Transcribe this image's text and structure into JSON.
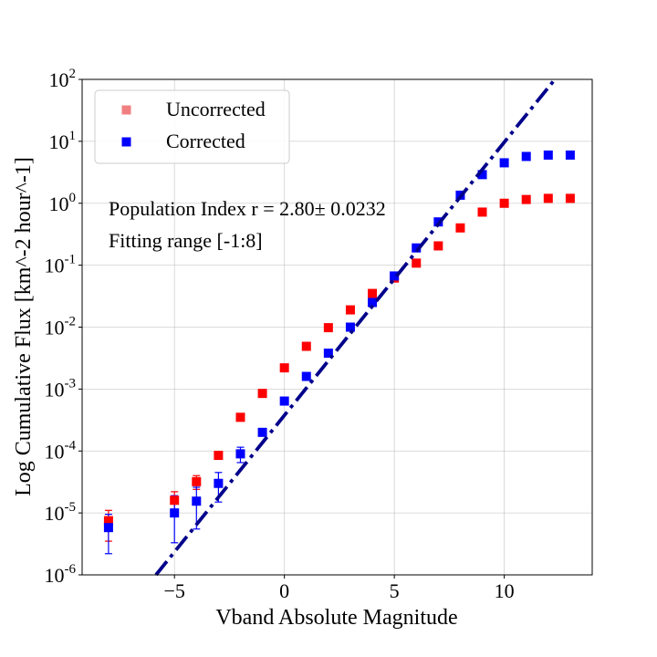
{
  "chart_data": {
    "type": "scatter",
    "xlabel": "Vband Absolute Magnitude",
    "ylabel": "Log Cumulative Flux [km^-2 hour^-1]",
    "xlim": [
      -9.2,
      14.0
    ],
    "ylim": [
      1e-06,
      100
    ],
    "yscale": "log",
    "grid": true,
    "legend_position": "top-left",
    "x_ticks": [
      {
        "value": -5,
        "label": "−5"
      },
      {
        "value": 0,
        "label": "0"
      },
      {
        "value": 5,
        "label": "5"
      },
      {
        "value": 10,
        "label": "10"
      }
    ],
    "y_ticks": [
      {
        "value": 1e-06,
        "base": "10",
        "exp": "-6"
      },
      {
        "value": 1e-05,
        "base": "10",
        "exp": "-5"
      },
      {
        "value": 0.0001,
        "base": "10",
        "exp": "-4"
      },
      {
        "value": 0.001,
        "base": "10",
        "exp": "-3"
      },
      {
        "value": 0.01,
        "base": "10",
        "exp": "-2"
      },
      {
        "value": 0.1,
        "base": "10",
        "exp": "-1"
      },
      {
        "value": 1,
        "base": "10",
        "exp": "0"
      },
      {
        "value": 10,
        "base": "10",
        "exp": "1"
      },
      {
        "value": 100,
        "base": "10",
        "exp": "2"
      }
    ],
    "series": [
      {
        "name": "Uncorrected",
        "color": "#ff0000",
        "legend_color": "#f08080",
        "marker": "square",
        "points": [
          {
            "x": -8,
            "y": 7.5e-06,
            "err_low": 3.5e-06,
            "err_high": 1.1e-05
          },
          {
            "x": -5,
            "y": 1.6e-05,
            "err_low": 9e-06,
            "err_high": 2.2e-05
          },
          {
            "x": -4,
            "y": 3.2e-05,
            "err_low": 2.4e-05,
            "err_high": 4e-05
          },
          {
            "x": -3,
            "y": 8.5e-05,
            "err_low": 7.5e-05,
            "err_high": 9.7e-05
          },
          {
            "x": -2,
            "y": 0.00035
          },
          {
            "x": -1,
            "y": 0.00085
          },
          {
            "x": 0,
            "y": 0.0022
          },
          {
            "x": 1,
            "y": 0.0049
          },
          {
            "x": 2,
            "y": 0.0098
          },
          {
            "x": 3,
            "y": 0.019
          },
          {
            "x": 4,
            "y": 0.035
          },
          {
            "x": 5,
            "y": 0.062
          },
          {
            "x": 6,
            "y": 0.108
          },
          {
            "x": 7,
            "y": 0.205
          },
          {
            "x": 8,
            "y": 0.4
          },
          {
            "x": 9,
            "y": 0.72
          },
          {
            "x": 10,
            "y": 1.0
          },
          {
            "x": 11,
            "y": 1.15
          },
          {
            "x": 12,
            "y": 1.2
          },
          {
            "x": 13,
            "y": 1.2
          }
        ]
      },
      {
        "name": "Corrected",
        "color": "#0000ff",
        "legend_color": "#0000ff",
        "marker": "square",
        "points": [
          {
            "x": -8,
            "y": 5.8e-06,
            "err_low": 2.2e-06,
            "err_high": 9.5e-06
          },
          {
            "x": -5,
            "y": 1e-05,
            "err_low": 3.3e-06,
            "err_high": 1.9e-05
          },
          {
            "x": -4,
            "y": 1.55e-05,
            "err_low": 5.5e-06,
            "err_high": 2.6e-05
          },
          {
            "x": -3,
            "y": 3e-05,
            "err_low": 1.5e-05,
            "err_high": 4.5e-05
          },
          {
            "x": -2,
            "y": 9e-05,
            "err_low": 6.5e-05,
            "err_high": 0.000115
          },
          {
            "x": -1,
            "y": 0.0002
          },
          {
            "x": 0,
            "y": 0.00064
          },
          {
            "x": 1,
            "y": 0.0016
          },
          {
            "x": 2,
            "y": 0.0038
          },
          {
            "x": 3,
            "y": 0.01
          },
          {
            "x": 4,
            "y": 0.025
          },
          {
            "x": 5,
            "y": 0.067
          },
          {
            "x": 6,
            "y": 0.19
          },
          {
            "x": 7,
            "y": 0.5
          },
          {
            "x": 8,
            "y": 1.35
          },
          {
            "x": 9,
            "y": 2.9
          },
          {
            "x": 10,
            "y": 4.5
          },
          {
            "x": 11,
            "y": 5.7
          },
          {
            "x": 12,
            "y": 6.0
          },
          {
            "x": 13,
            "y": 6.0
          }
        ]
      }
    ],
    "fit_line": {
      "style": "dash-dot",
      "color": "#00008b",
      "x": [
        -5.84,
        12.3
      ],
      "y": [
        1e-06,
        100
      ]
    },
    "annotations": [
      "Population Index r = 2.80± 0.0232",
      "Fitting range [-1:8]"
    ]
  }
}
